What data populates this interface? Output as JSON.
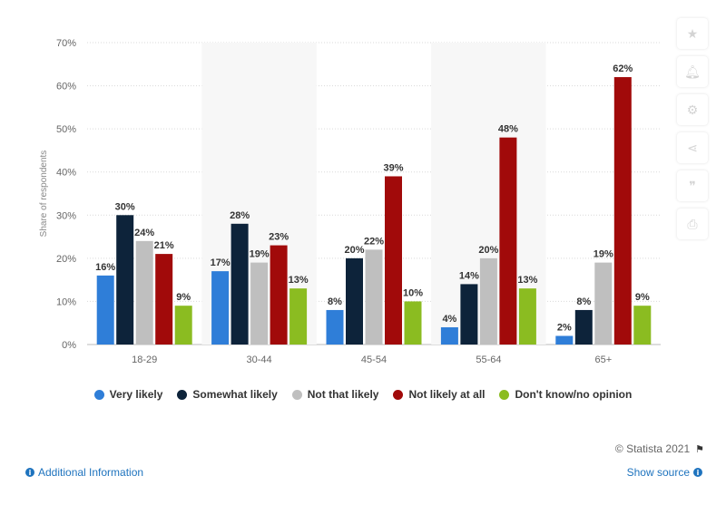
{
  "chart_data": {
    "type": "bar",
    "categories": [
      "18-29",
      "30-44",
      "45-54",
      "55-64",
      "65+"
    ],
    "series": [
      {
        "name": "Very likely",
        "values": [
          16,
          17,
          8,
          4,
          2
        ],
        "color": "#2f7ed8"
      },
      {
        "name": "Somewhat likely",
        "values": [
          30,
          28,
          20,
          14,
          8
        ],
        "color": "#0d233a"
      },
      {
        "name": "Not that likely",
        "values": [
          24,
          19,
          22,
          20,
          19
        ],
        "color": "#bfbfbf"
      },
      {
        "name": "Not likely at all",
        "values": [
          21,
          23,
          39,
          48,
          62
        ],
        "color": "#a10a0a"
      },
      {
        "name": "Don't know/no opinion",
        "values": [
          9,
          13,
          10,
          13,
          9
        ],
        "color": "#8bbc21"
      }
    ],
    "title": "",
    "xlabel": "",
    "ylabel": "Share of respondents",
    "ylim": [
      0,
      70
    ],
    "yticks": [
      0,
      10,
      20,
      30,
      40,
      50,
      60,
      70
    ],
    "tick_suffix": "%",
    "grid": true,
    "legend_position": "bottom"
  },
  "legend": {
    "items": [
      {
        "label": "Very likely",
        "color": "#2f7ed8"
      },
      {
        "label": "Somewhat likely",
        "color": "#0d233a"
      },
      {
        "label": "Not that likely",
        "color": "#bfbfbf"
      },
      {
        "label": "Not likely at all",
        "color": "#a10a0a"
      },
      {
        "label": "Don't know/no opinion",
        "color": "#8bbc21"
      }
    ]
  },
  "footer": {
    "copyright": "© Statista 2021",
    "additional_info": "Additional Information",
    "show_source": "Show source"
  },
  "tools": [
    "star-icon",
    "bell-icon",
    "gear-icon",
    "share-icon",
    "quote-icon",
    "print-icon"
  ]
}
